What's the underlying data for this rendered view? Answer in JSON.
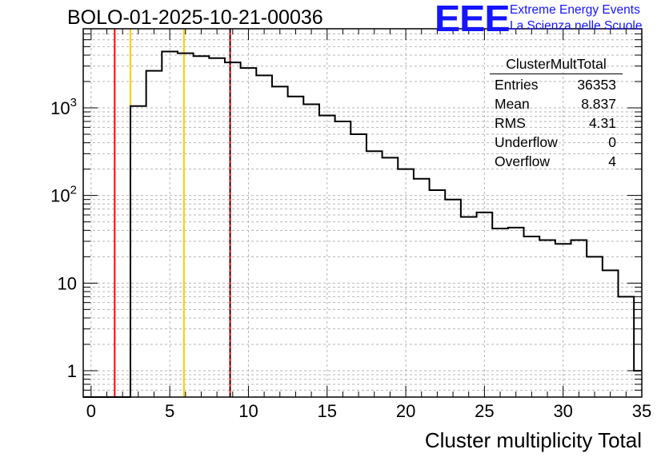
{
  "header": {
    "title": "BOLO-01-2025-10-21-00036",
    "logo_text": "EEE",
    "logo_line1": "Extreme Energy Events",
    "logo_line2": "La Scienza nelle Scuole"
  },
  "stats_box": {
    "title": "ClusterMultTotal",
    "rows": [
      {
        "label": "Entries",
        "value": "36353"
      },
      {
        "label": "Mean",
        "value": "8.837"
      },
      {
        "label": "RMS",
        "value": "4.31"
      },
      {
        "label": "Underflow",
        "value": "0"
      },
      {
        "label": "Overflow",
        "value": "4"
      }
    ]
  },
  "chart_data": {
    "type": "histogram",
    "title": "BOLO-01-2025-10-21-00036",
    "xlabel": "Cluster multiplicity Total",
    "ylabel": "",
    "yscale": "log",
    "xlim": [
      -0.5,
      35
    ],
    "ylim": [
      0.5,
      8000
    ],
    "grid": true,
    "x_ticks": [
      0,
      5,
      10,
      15,
      20,
      25,
      30,
      35
    ],
    "x_tick_labels": [
      "0",
      "5",
      "10",
      "15",
      "20",
      "25",
      "30",
      "35"
    ],
    "y_ticks": [
      1,
      10,
      100,
      1000
    ],
    "y_tick_labels": [
      "1",
      "10",
      "10^2",
      "10^3"
    ],
    "bin_edges": [
      -0.5,
      0.5,
      1.5,
      2.5,
      3.5,
      4.5,
      5.5,
      6.5,
      7.5,
      8.5,
      9.5,
      10.5,
      11.5,
      12.5,
      13.5,
      14.5,
      15.5,
      16.5,
      17.5,
      18.5,
      19.5,
      20.5,
      21.5,
      22.5,
      23.5,
      24.5,
      25.5,
      26.5,
      27.5,
      28.5,
      29.5,
      30.5,
      31.5,
      32.5,
      33.5,
      34.5,
      35.5
    ],
    "counts": [
      0,
      0,
      0,
      1050,
      2650,
      4400,
      4200,
      3900,
      3700,
      3300,
      2850,
      2350,
      1750,
      1350,
      1100,
      820,
      700,
      500,
      320,
      270,
      200,
      155,
      115,
      90,
      57,
      64,
      42,
      43,
      34,
      31,
      28,
      31,
      20,
      14,
      7,
      1
    ],
    "vertical_lines": [
      {
        "x": 1.5,
        "color": "#ff0000",
        "style": "solid"
      },
      {
        "x": 2.5,
        "color": "#ffcc00",
        "style": "solid"
      },
      {
        "x": 5.9,
        "color": "#ffcc00",
        "style": "solid"
      },
      {
        "x": 8.837,
        "color": "#ff0000",
        "style": "solid"
      },
      {
        "x": 8.837,
        "color": "#000000",
        "style": "dashed"
      }
    ],
    "colors": {
      "line": "#000000",
      "grid": "#b4b4b4"
    }
  }
}
